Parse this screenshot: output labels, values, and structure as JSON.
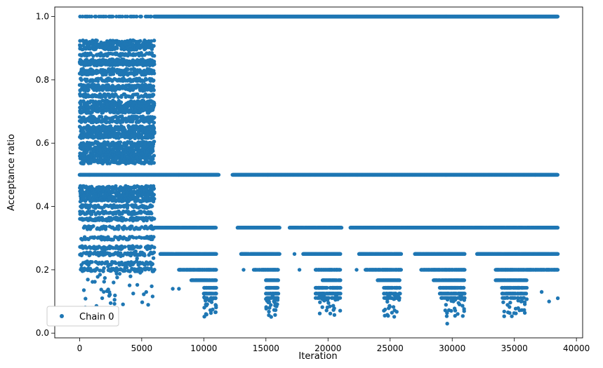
{
  "chart_data": {
    "type": "scatter",
    "title": "",
    "xlabel": "Iteration",
    "ylabel": "Acceptance ratio",
    "xlim": [
      -2000,
      40500
    ],
    "ylim": [
      -0.015,
      1.03
    ],
    "xticks": [
      0,
      5000,
      10000,
      15000,
      20000,
      25000,
      30000,
      35000,
      40000
    ],
    "xtick_labels": [
      "0",
      "5000",
      "10000",
      "15000",
      "20000",
      "25000",
      "30000",
      "35000",
      "40000"
    ],
    "yticks": [
      0.0,
      0.2,
      0.4,
      0.6,
      0.8,
      1.0
    ],
    "ytick_labels": [
      "0.0",
      "0.2",
      "0.4",
      "0.6",
      "0.8",
      "1.0"
    ],
    "grid": false,
    "legend": {
      "position": "lower-left",
      "entries": [
        "Chain 0"
      ]
    },
    "series": [
      {
        "name": "Chain 0",
        "color": "#1f77b4",
        "marker": "circle",
        "description_of_pattern": "dense bands",
        "bands": [
          {
            "y": 1.0,
            "x_start": 6000,
            "x_end": 38500
          },
          {
            "y": 0.5,
            "x_start": 0,
            "x_end": 38500
          },
          {
            "y": 0.333,
            "x_start": 0,
            "x_end": 38500
          },
          {
            "y": 0.25,
            "x_start": 0,
            "x_end": 38500
          },
          {
            "y": 0.2,
            "x_start": 0,
            "x_end": 38500
          }
        ],
        "points_sample": [
          {
            "x": 0,
            "y": 1.0
          },
          {
            "x": 3000,
            "y": 1.0
          },
          {
            "x": 5500,
            "y": 0.92
          },
          {
            "x": 5000,
            "y": 0.94
          },
          {
            "x": 6000,
            "y": 0.5
          },
          {
            "x": 10000,
            "y": 0.333
          },
          {
            "x": 10800,
            "y": 0.06
          },
          {
            "x": 20000,
            "y": 0.25
          },
          {
            "x": 29600,
            "y": 0.03
          },
          {
            "x": 31000,
            "y": 0.06
          },
          {
            "x": 35000,
            "y": 0.06
          },
          {
            "x": 38500,
            "y": 0.5
          }
        ]
      }
    ]
  }
}
